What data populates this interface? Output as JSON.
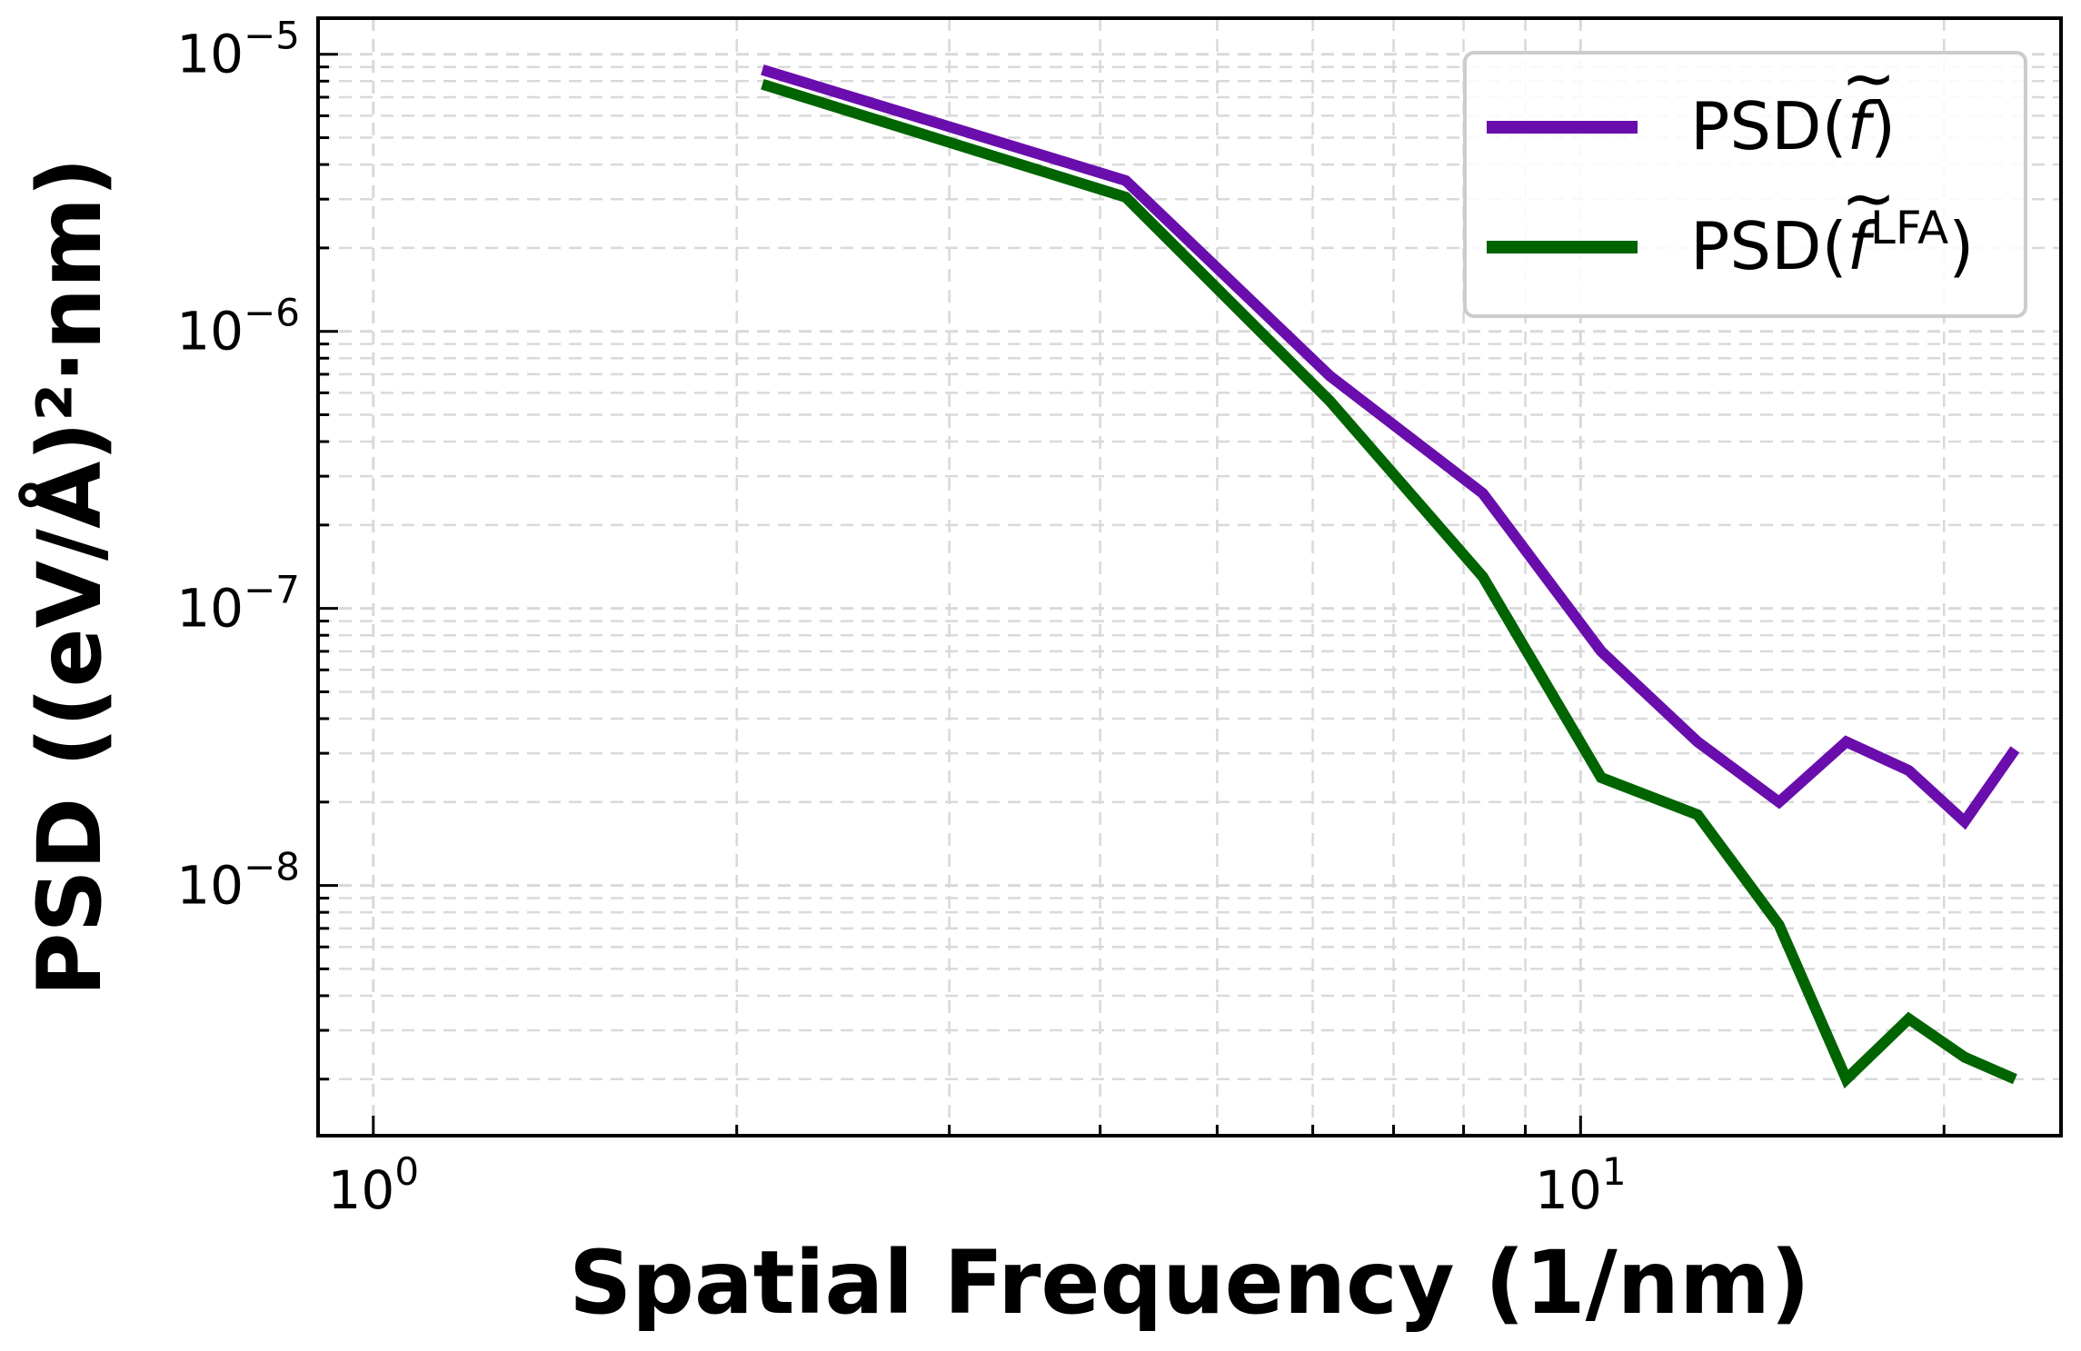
{
  "chart_data": {
    "type": "line",
    "xlabel": "Spatial Frequency (1/nm)",
    "ylabel": "PSD ((eV/Å)²·nm)",
    "xscale": "log",
    "yscale": "log",
    "xlim": [
      0.9,
      25.0
    ],
    "ylim": [
      1.25e-09,
      1.35e-05
    ],
    "grid": true,
    "legend_position": "top-right",
    "x_ticks": [
      {
        "value": 1,
        "base": "10",
        "exp": "0"
      },
      {
        "value": 10,
        "base": "10",
        "exp": "1"
      }
    ],
    "y_ticks": [
      {
        "value": 1e-05,
        "base": "10",
        "exp": "−5"
      },
      {
        "value": 1e-06,
        "base": "10",
        "exp": "−6"
      },
      {
        "value": 1e-07,
        "base": "10",
        "exp": "−7"
      },
      {
        "value": 1e-08,
        "base": "10",
        "exp": "−8"
      }
    ],
    "x": [
      2.1,
      4.2,
      6.2,
      8.3,
      10.4,
      12.5,
      14.6,
      16.6,
      18.7,
      20.8,
      22.9
    ],
    "series": [
      {
        "name": "PSD(f̃)",
        "color": "#6a0dad",
        "values": [
          8.8e-06,
          3.5e-06,
          6.9e-07,
          2.6e-07,
          7e-08,
          3.3e-08,
          2e-08,
          3.3e-08,
          2.6e-08,
          1.7e-08,
          3.1e-08
        ]
      },
      {
        "name": "PSD(f̃LFA)",
        "color": "#006400",
        "values": [
          7.8e-06,
          3.05e-06,
          5.6e-07,
          1.3e-07,
          2.45e-08,
          1.8e-08,
          7.2e-09,
          2e-09,
          3.3e-09,
          2.4e-09,
          2e-09
        ]
      }
    ],
    "legend": [
      {
        "base": "PSD(",
        "f": "f",
        "sup": "",
        "close": ")"
      },
      {
        "base": "PSD(",
        "f": "f",
        "sup": "LFA",
        "close": ")"
      }
    ]
  }
}
